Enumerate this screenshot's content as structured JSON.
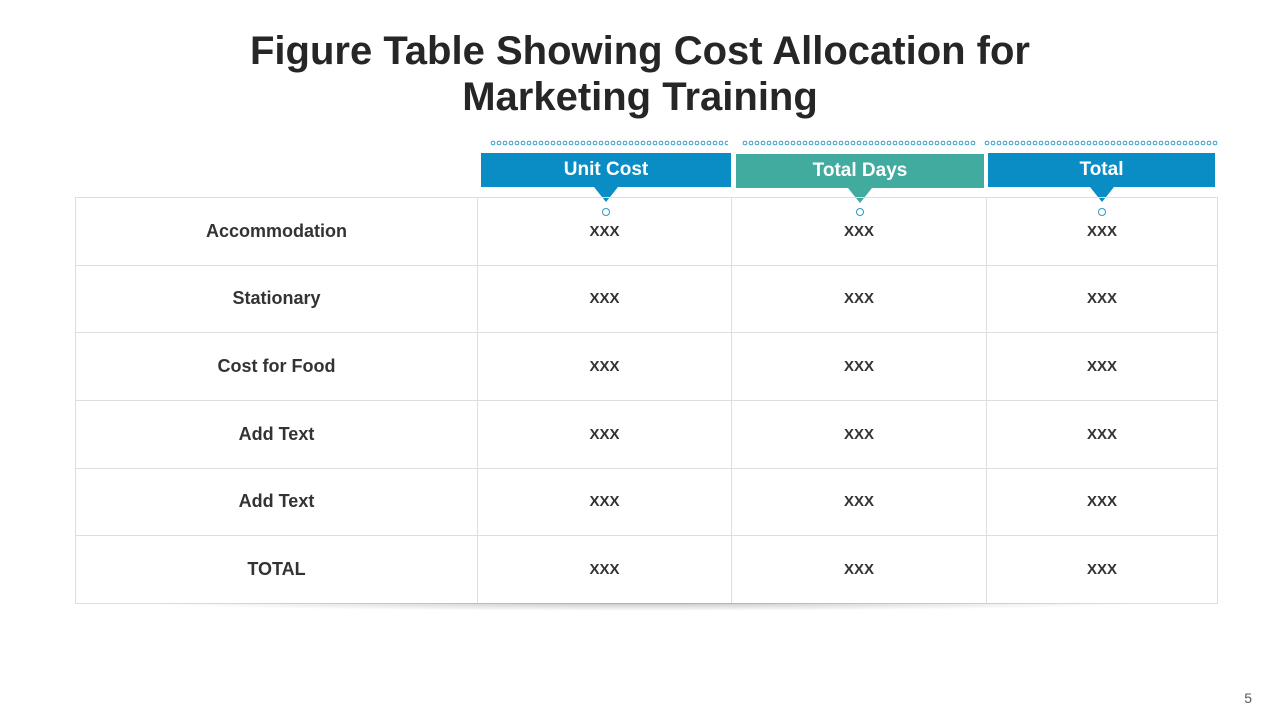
{
  "slide": {
    "title_line1": "Figure Table Showing Cost Allocation for",
    "title_line2": "Marketing Training",
    "page_number": "5"
  },
  "colors": {
    "blue_header": "#0a8cc4",
    "teal_header": "#42ab9f",
    "dot_accent": "#2a9bc4"
  },
  "columns": [
    {
      "label": "Unit Cost",
      "color": "#0a8cc4"
    },
    {
      "label": "Total Days",
      "color": "#42ab9f"
    },
    {
      "label": "Total",
      "color": "#0a8cc4"
    }
  ],
  "rows": [
    {
      "label": "Accommodation",
      "values": [
        "XXX",
        "XXX",
        "XXX"
      ]
    },
    {
      "label": "Stationary",
      "values": [
        "XXX",
        "XXX",
        "XXX"
      ]
    },
    {
      "label": "Cost for Food",
      "values": [
        "XXX",
        "XXX",
        "XXX"
      ]
    },
    {
      "label": "Add Text",
      "values": [
        "XXX",
        "XXX",
        "XXX"
      ]
    },
    {
      "label": "Add Text",
      "values": [
        "XXX",
        "XXX",
        "XXX"
      ]
    },
    {
      "label": "TOTAL",
      "values": [
        "XXX",
        "XXX",
        "XXX"
      ]
    }
  ]
}
